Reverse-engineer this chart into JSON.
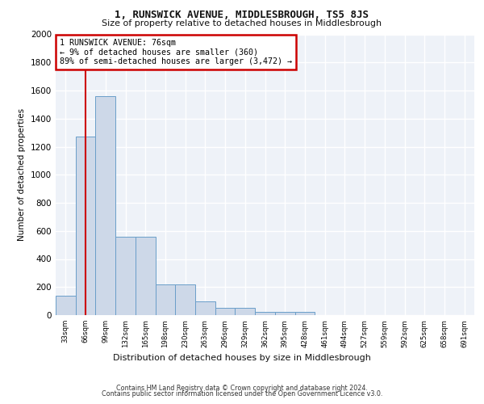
{
  "title": "1, RUNSWICK AVENUE, MIDDLESBROUGH, TS5 8JS",
  "subtitle": "Size of property relative to detached houses in Middlesbrough",
  "xlabel": "Distribution of detached houses by size in Middlesbrough",
  "ylabel": "Number of detached properties",
  "bin_labels": [
    "33sqm",
    "66sqm",
    "99sqm",
    "132sqm",
    "165sqm",
    "198sqm",
    "230sqm",
    "263sqm",
    "296sqm",
    "329sqm",
    "362sqm",
    "395sqm",
    "428sqm",
    "461sqm",
    "494sqm",
    "527sqm",
    "559sqm",
    "592sqm",
    "625sqm",
    "658sqm",
    "691sqm"
  ],
  "bar_values": [
    140,
    1270,
    1560,
    560,
    560,
    220,
    220,
    95,
    50,
    50,
    25,
    25,
    25,
    0,
    0,
    0,
    0,
    0,
    0,
    0,
    0
  ],
  "bar_color": "#cdd8e8",
  "bar_edge_color": "#6a9ec9",
  "property_line_x": 1.0,
  "annotation_text": "1 RUNSWICK AVENUE: 76sqm\n← 9% of detached houses are smaller (360)\n89% of semi-detached houses are larger (3,472) →",
  "annotation_box_color": "#ffffff",
  "annotation_border_color": "#cc0000",
  "vline_color": "#cc0000",
  "ylim": [
    0,
    2000
  ],
  "yticks": [
    0,
    200,
    400,
    600,
    800,
    1000,
    1200,
    1400,
    1600,
    1800,
    2000
  ],
  "footer_line1": "Contains HM Land Registry data © Crown copyright and database right 2024.",
  "footer_line2": "Contains public sector information licensed under the Open Government Licence v3.0.",
  "plot_bg_color": "#eef2f8"
}
